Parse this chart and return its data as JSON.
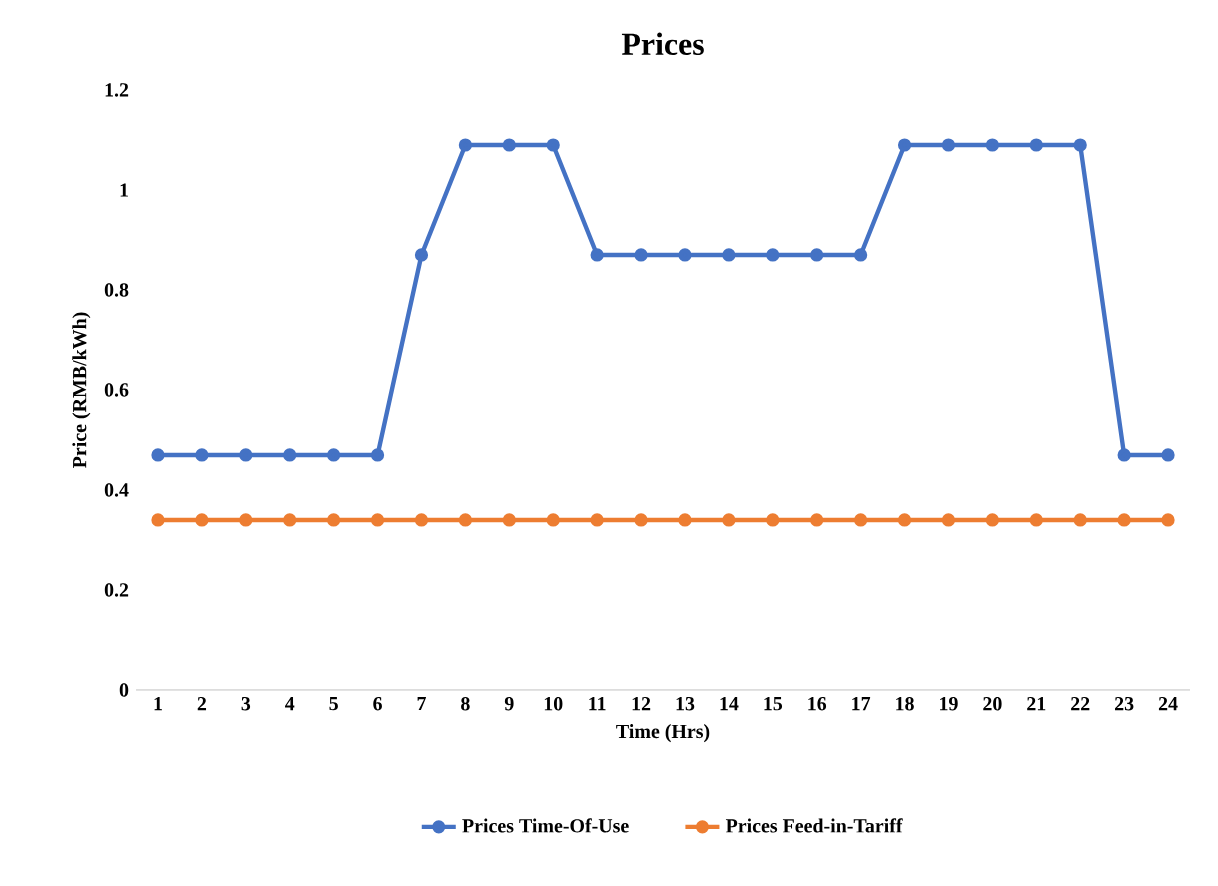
{
  "chart_data": {
    "type": "line",
    "title": "Prices",
    "xlabel": "Time (Hrs)",
    "ylabel": "Price (RMB/kWh)",
    "categories": [
      "1",
      "2",
      "3",
      "4",
      "5",
      "6",
      "7",
      "8",
      "9",
      "10",
      "11",
      "12",
      "13",
      "14",
      "15",
      "16",
      "17",
      "18",
      "19",
      "20",
      "21",
      "22",
      "23",
      "24"
    ],
    "series": [
      {
        "name": "Prices Time-Of-Use",
        "color": "#4472c4",
        "values": [
          0.47,
          0.47,
          0.47,
          0.47,
          0.47,
          0.47,
          0.87,
          1.09,
          1.09,
          1.09,
          0.87,
          0.87,
          0.87,
          0.87,
          0.87,
          0.87,
          0.87,
          1.09,
          1.09,
          1.09,
          1.09,
          1.09,
          0.47,
          0.47
        ]
      },
      {
        "name": "Prices Feed-in-Tariff",
        "color": "#ed7d31",
        "values": [
          0.34,
          0.34,
          0.34,
          0.34,
          0.34,
          0.34,
          0.34,
          0.34,
          0.34,
          0.34,
          0.34,
          0.34,
          0.34,
          0.34,
          0.34,
          0.34,
          0.34,
          0.34,
          0.34,
          0.34,
          0.34,
          0.34,
          0.34,
          0.34
        ]
      }
    ],
    "ylim": [
      0,
      1.2
    ],
    "yticks": [
      0,
      0.2,
      0.4,
      0.6,
      0.8,
      1,
      1.2
    ],
    "grid": false,
    "legend": "bottom",
    "marker": "circle",
    "line_style": "solid"
  }
}
